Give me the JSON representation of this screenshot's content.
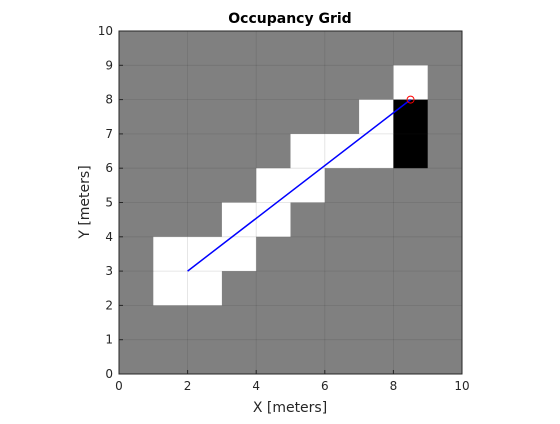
{
  "chart_data": {
    "type": "heatmap",
    "title": "Occupancy Grid",
    "xlabel": "X [meters]",
    "ylabel": "Y [meters]",
    "xlim": [
      0,
      10
    ],
    "ylim": [
      0,
      10
    ],
    "xticks": [
      0,
      2,
      4,
      6,
      8,
      10
    ],
    "yticks": [
      0,
      1,
      2,
      3,
      4,
      5,
      6,
      7,
      8,
      9,
      10
    ],
    "grid": true,
    "occupancy": [
      [
        0.5,
        0.5,
        0.5,
        0.5,
        0.5,
        0.5,
        0.5,
        0.5,
        0.5,
        0.5
      ],
      [
        0.5,
        0.5,
        0.5,
        0.5,
        0.5,
        0.5,
        0.5,
        0.5,
        0,
        0.5
      ],
      [
        0.5,
        0.5,
        0.5,
        0.5,
        0.5,
        0.5,
        0.5,
        0,
        1,
        0.5
      ],
      [
        0.5,
        0.5,
        0.5,
        0.5,
        0.5,
        0,
        0,
        0,
        1,
        0.5
      ],
      [
        0.5,
        0.5,
        0.5,
        0.5,
        0,
        0,
        0.5,
        0.5,
        0.5,
        0.5
      ],
      [
        0.5,
        0.5,
        0.5,
        0,
        0,
        0.5,
        0.5,
        0.5,
        0.5,
        0.5
      ],
      [
        0.5,
        0,
        0,
        0,
        0.5,
        0.5,
        0.5,
        0.5,
        0.5,
        0.5
      ],
      [
        0.5,
        0,
        0,
        0.5,
        0.5,
        0.5,
        0.5,
        0.5,
        0.5,
        0.5
      ],
      [
        0.5,
        0.5,
        0.5,
        0.5,
        0.5,
        0.5,
        0.5,
        0.5,
        0.5,
        0.5
      ],
      [
        0.5,
        0.5,
        0.5,
        0.5,
        0.5,
        0.5,
        0.5,
        0.5,
        0.5,
        0.5
      ]
    ],
    "ray": {
      "x": [
        2,
        8.5
      ],
      "y": [
        3,
        8
      ],
      "color": "#0000ff"
    },
    "endpoint": {
      "x": 8.5,
      "y": 8,
      "color": "#ff0000"
    }
  }
}
